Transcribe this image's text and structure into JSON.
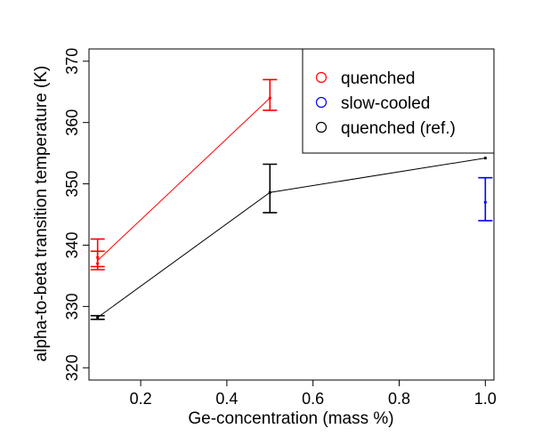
{
  "chart_data": {
    "type": "scatter",
    "title": "",
    "xlabel": "Ge-concentration (mass %)",
    "ylabel": "alpha-to-beta transition temperature (K)",
    "xlim": [
      0.08,
      1.02
    ],
    "ylim": [
      318,
      372
    ],
    "x_ticks": [
      0.2,
      0.4,
      0.6,
      0.8,
      1.0
    ],
    "x_tick_labels": [
      "0.2",
      "0.4",
      "0.6",
      "0.8",
      "1.0"
    ],
    "y_ticks": [
      320,
      330,
      340,
      350,
      360,
      370
    ],
    "y_tick_labels": [
      "320",
      "330",
      "340",
      "350",
      "360",
      "370"
    ],
    "grid": false,
    "legend_position": "top-right",
    "series": [
      {
        "name": "quenched",
        "color": "#ff0000",
        "connected": true,
        "points": [
          {
            "x": 0.1,
            "y": 337.0,
            "lo": 336.0,
            "hi": 341.0
          },
          {
            "x": 0.1,
            "y": 338.0,
            "lo": 336.5,
            "hi": 339.0
          },
          {
            "x": 0.5,
            "y": 364.0,
            "lo": 362.0,
            "hi": 367.0
          }
        ]
      },
      {
        "name": "slow-cooled",
        "color": "#0000ff",
        "connected": false,
        "points": [
          {
            "x": 1.0,
            "y": 347.0,
            "lo": 344.0,
            "hi": 351.0
          }
        ]
      },
      {
        "name": "quenched (ref.)",
        "color": "#000000",
        "connected": true,
        "points": [
          {
            "x": 0.1,
            "y": 328.2,
            "lo": 327.9,
            "hi": 328.5
          },
          {
            "x": 0.5,
            "y": 348.6,
            "lo": 345.3,
            "hi": 353.2
          },
          {
            "x": 1.0,
            "y": 354.2,
            "lo": null,
            "hi": null
          }
        ]
      }
    ]
  }
}
